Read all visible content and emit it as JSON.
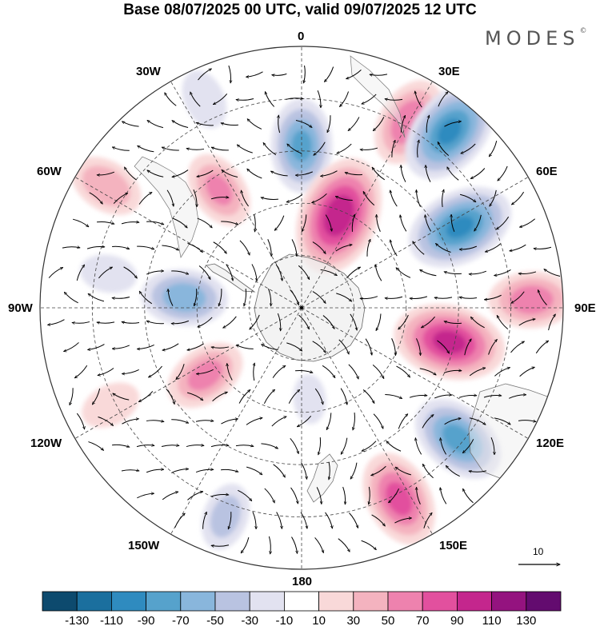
{
  "title": "Base 08/07/2025 00 UTC, valid 09/07/2025 12 UTC",
  "brand": {
    "name": "MODES",
    "mark": "©"
  },
  "longitude_labels": [
    {
      "id": "lon-0",
      "text": "0"
    },
    {
      "id": "lon-30e",
      "text": "30E"
    },
    {
      "id": "lon-60e",
      "text": "60E"
    },
    {
      "id": "lon-90e",
      "text": "90E"
    },
    {
      "id": "lon-120e",
      "text": "120E"
    },
    {
      "id": "lon-150e",
      "text": "150E"
    },
    {
      "id": "lon-180",
      "text": "180"
    },
    {
      "id": "lon-150w",
      "text": "150W"
    },
    {
      "id": "lon-120w",
      "text": "120W"
    },
    {
      "id": "lon-90w",
      "text": "90W"
    },
    {
      "id": "lon-60w",
      "text": "60W"
    },
    {
      "id": "lon-30w",
      "text": "30W"
    }
  ],
  "reference_vector": {
    "value": "10"
  },
  "colorbar": {
    "colors": [
      "#0d4a6e",
      "#1b6f9e",
      "#2f8bbf",
      "#56a2cc",
      "#89b6dc",
      "#b9c3e1",
      "#e2e2f0",
      "#ffffff",
      "#f9d9d9",
      "#f4b3bf",
      "#ee82ae",
      "#e2509e",
      "#c4268d",
      "#94137f",
      "#630b6f"
    ],
    "labels": [
      "-130",
      "-110",
      "-90",
      "-70",
      "-50",
      "-30",
      "-10",
      "10",
      "30",
      "50",
      "70",
      "90",
      "110",
      "130"
    ]
  },
  "map_data": {
    "projection": "south polar stereographic",
    "anomalies": [
      {
        "lon": 0,
        "colat": 0.62,
        "value": -80
      },
      {
        "lon": 22,
        "colat": 0.38,
        "value": 115
      },
      {
        "lon": 30,
        "colat": 0.82,
        "value": 75
      },
      {
        "lon": 40,
        "colat": 0.88,
        "value": -100
      },
      {
        "lon": 63,
        "colat": 0.68,
        "value": -100
      },
      {
        "lon": 88,
        "colat": 0.88,
        "value": 70
      },
      {
        "lon": 103,
        "colat": 0.58,
        "value": 105
      },
      {
        "lon": 130,
        "colat": 0.78,
        "value": -85
      },
      {
        "lon": 153,
        "colat": 0.82,
        "value": 85
      },
      {
        "lon": -125,
        "colat": 0.45,
        "value": 65
      },
      {
        "lon": -160,
        "colat": 0.85,
        "value": -45
      },
      {
        "lon": -117,
        "colat": 0.82,
        "value": 35
      },
      {
        "lon": -85,
        "colat": 0.45,
        "value": -70
      },
      {
        "lon": -58,
        "colat": 0.88,
        "value": 55
      },
      {
        "lon": -35,
        "colat": 0.55,
        "value": 60
      },
      {
        "lon": -25,
        "colat": 0.88,
        "value": -35
      },
      {
        "lon": -80,
        "colat": 0.75,
        "value": -30
      },
      {
        "lon": 175,
        "colat": 0.35,
        "value": -20
      }
    ]
  }
}
